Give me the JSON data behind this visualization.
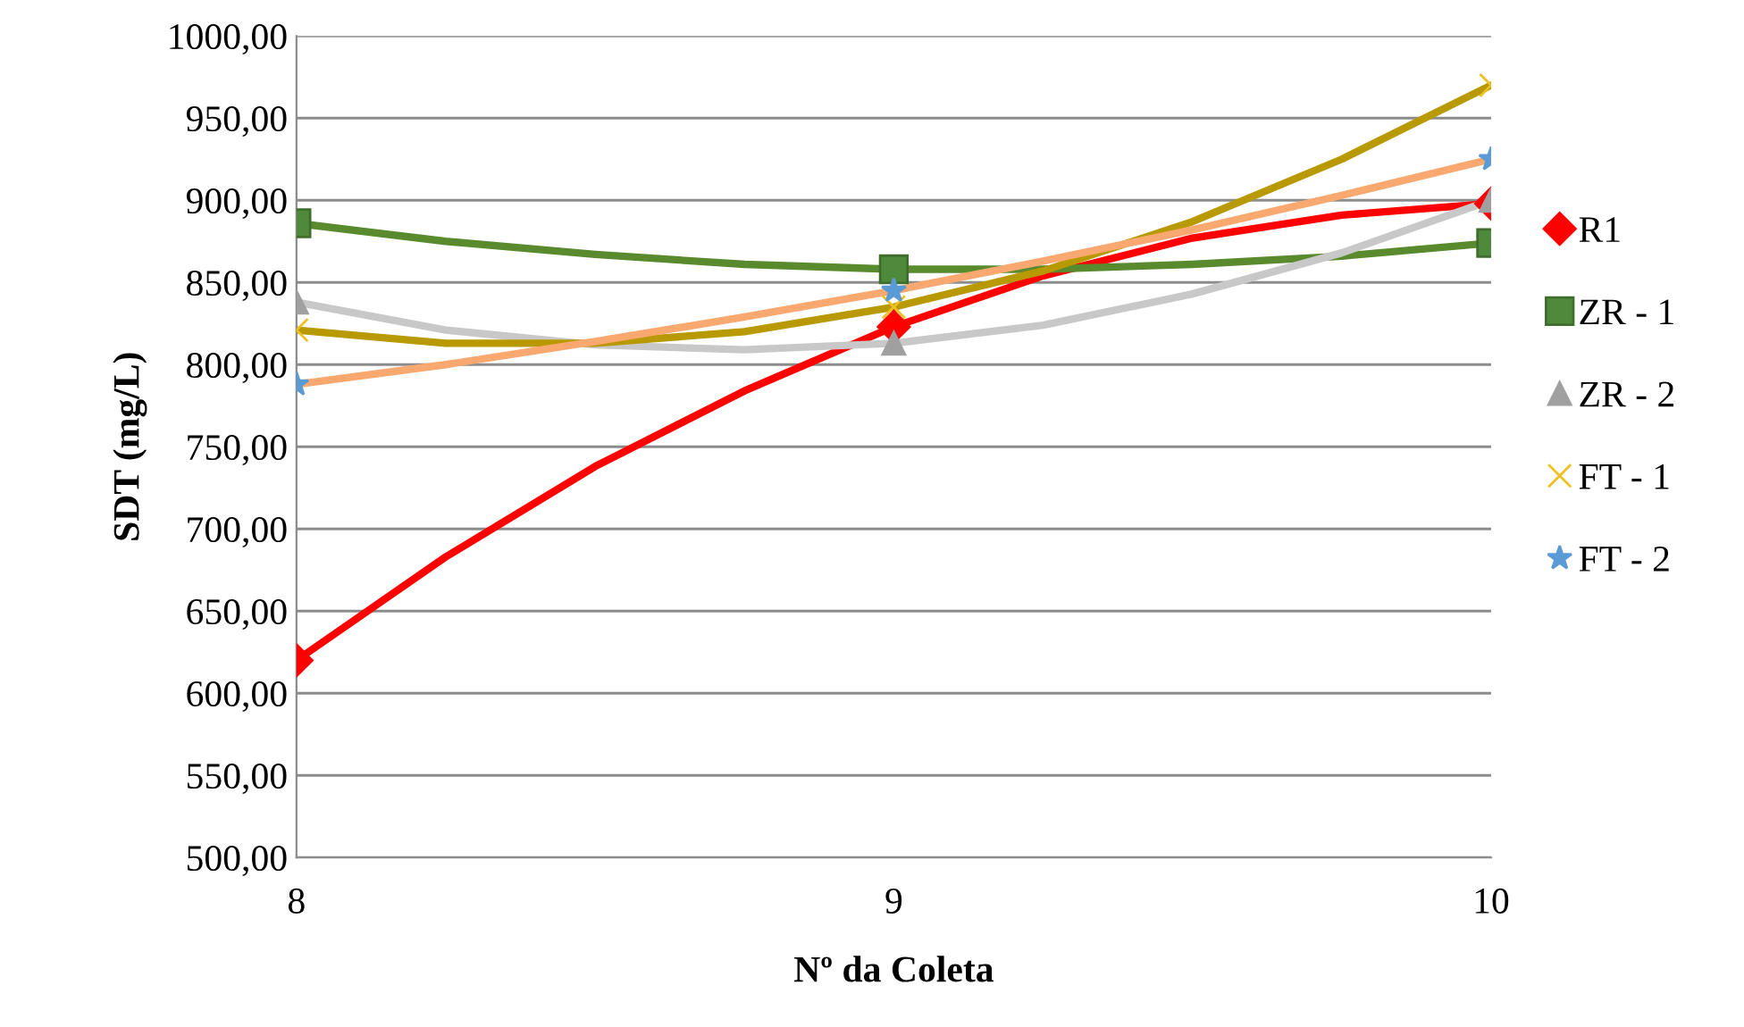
{
  "chart_data": {
    "type": "scatter",
    "xlabel": "Nº da Coleta",
    "ylabel": "SDT (mg/L)",
    "x": [
      8,
      9,
      10
    ],
    "xlim": [
      8,
      10
    ],
    "xticks": [
      8,
      9,
      10
    ],
    "ylim": [
      500,
      1000
    ],
    "yticks": [
      {
        "value": 500,
        "label": "500,00"
      },
      {
        "value": 550,
        "label": "550,00"
      },
      {
        "value": 600,
        "label": "600,00"
      },
      {
        "value": 650,
        "label": "650,00"
      },
      {
        "value": 700,
        "label": "700,00"
      },
      {
        "value": 750,
        "label": "750,00"
      },
      {
        "value": 800,
        "label": "800,00"
      },
      {
        "value": 850,
        "label": "850,00"
      },
      {
        "value": 900,
        "label": "900,00"
      },
      {
        "value": 950,
        "label": "950,00"
      },
      {
        "value": 1000,
        "label": "1000,00"
      }
    ],
    "grid": "y",
    "legend": "right",
    "series": [
      {
        "type": "line",
        "marker": "none",
        "color": "#ff0000",
        "x": [
          8,
          8.25,
          8.5,
          8.75,
          9,
          9.25,
          9.5,
          9.75,
          10
        ],
        "values": [
          620,
          683,
          738,
          784,
          823,
          854,
          877,
          891,
          898
        ]
      },
      {
        "type": "line",
        "marker": "none",
        "color": "#5a8a2e",
        "x": [
          8,
          8.25,
          8.5,
          8.75,
          9,
          9.25,
          9.5,
          9.75,
          10
        ],
        "values": [
          886,
          875,
          867,
          861,
          858,
          858,
          861,
          866,
          874
        ]
      },
      {
        "type": "line",
        "marker": "none",
        "color": "#c8c8c8",
        "x": [
          8,
          8.25,
          8.5,
          8.75,
          9,
          9.25,
          9.5,
          9.75,
          10
        ],
        "values": [
          838,
          821,
          812,
          809,
          813,
          824,
          843,
          868,
          900
        ]
      },
      {
        "type": "line",
        "marker": "none",
        "color": "#b89a00",
        "x": [
          8,
          8.25,
          8.5,
          8.75,
          9,
          9.25,
          9.5,
          9.75,
          10
        ],
        "values": [
          821,
          813,
          813,
          820,
          835,
          857,
          887,
          925,
          970
        ]
      },
      {
        "type": "line",
        "marker": "none",
        "color": "#f9a870",
        "x": [
          8,
          8.25,
          8.5,
          8.75,
          9,
          9.25,
          9.5,
          9.75,
          10
        ],
        "values": [
          788,
          800,
          814,
          829,
          845,
          863,
          882,
          903,
          925
        ]
      },
      {
        "name": "R1",
        "marker": "diamond",
        "color": "#ff0000",
        "values": [
          620,
          823,
          898
        ]
      },
      {
        "name": "ZR - 1",
        "marker": "square",
        "color": "#4f8a3c",
        "values": [
          886,
          858,
          874
        ]
      },
      {
        "name": "ZR - 2",
        "marker": "triangle",
        "color": "#a0a0a0",
        "values": [
          838,
          813,
          900
        ]
      },
      {
        "name": "FT - 1",
        "marker": "cross",
        "color": "#f0c020",
        "values": [
          821,
          835,
          970
        ]
      },
      {
        "name": "FT - 2",
        "marker": "star",
        "color": "#5b9bd5",
        "values": [
          788,
          845,
          925
        ]
      }
    ]
  }
}
